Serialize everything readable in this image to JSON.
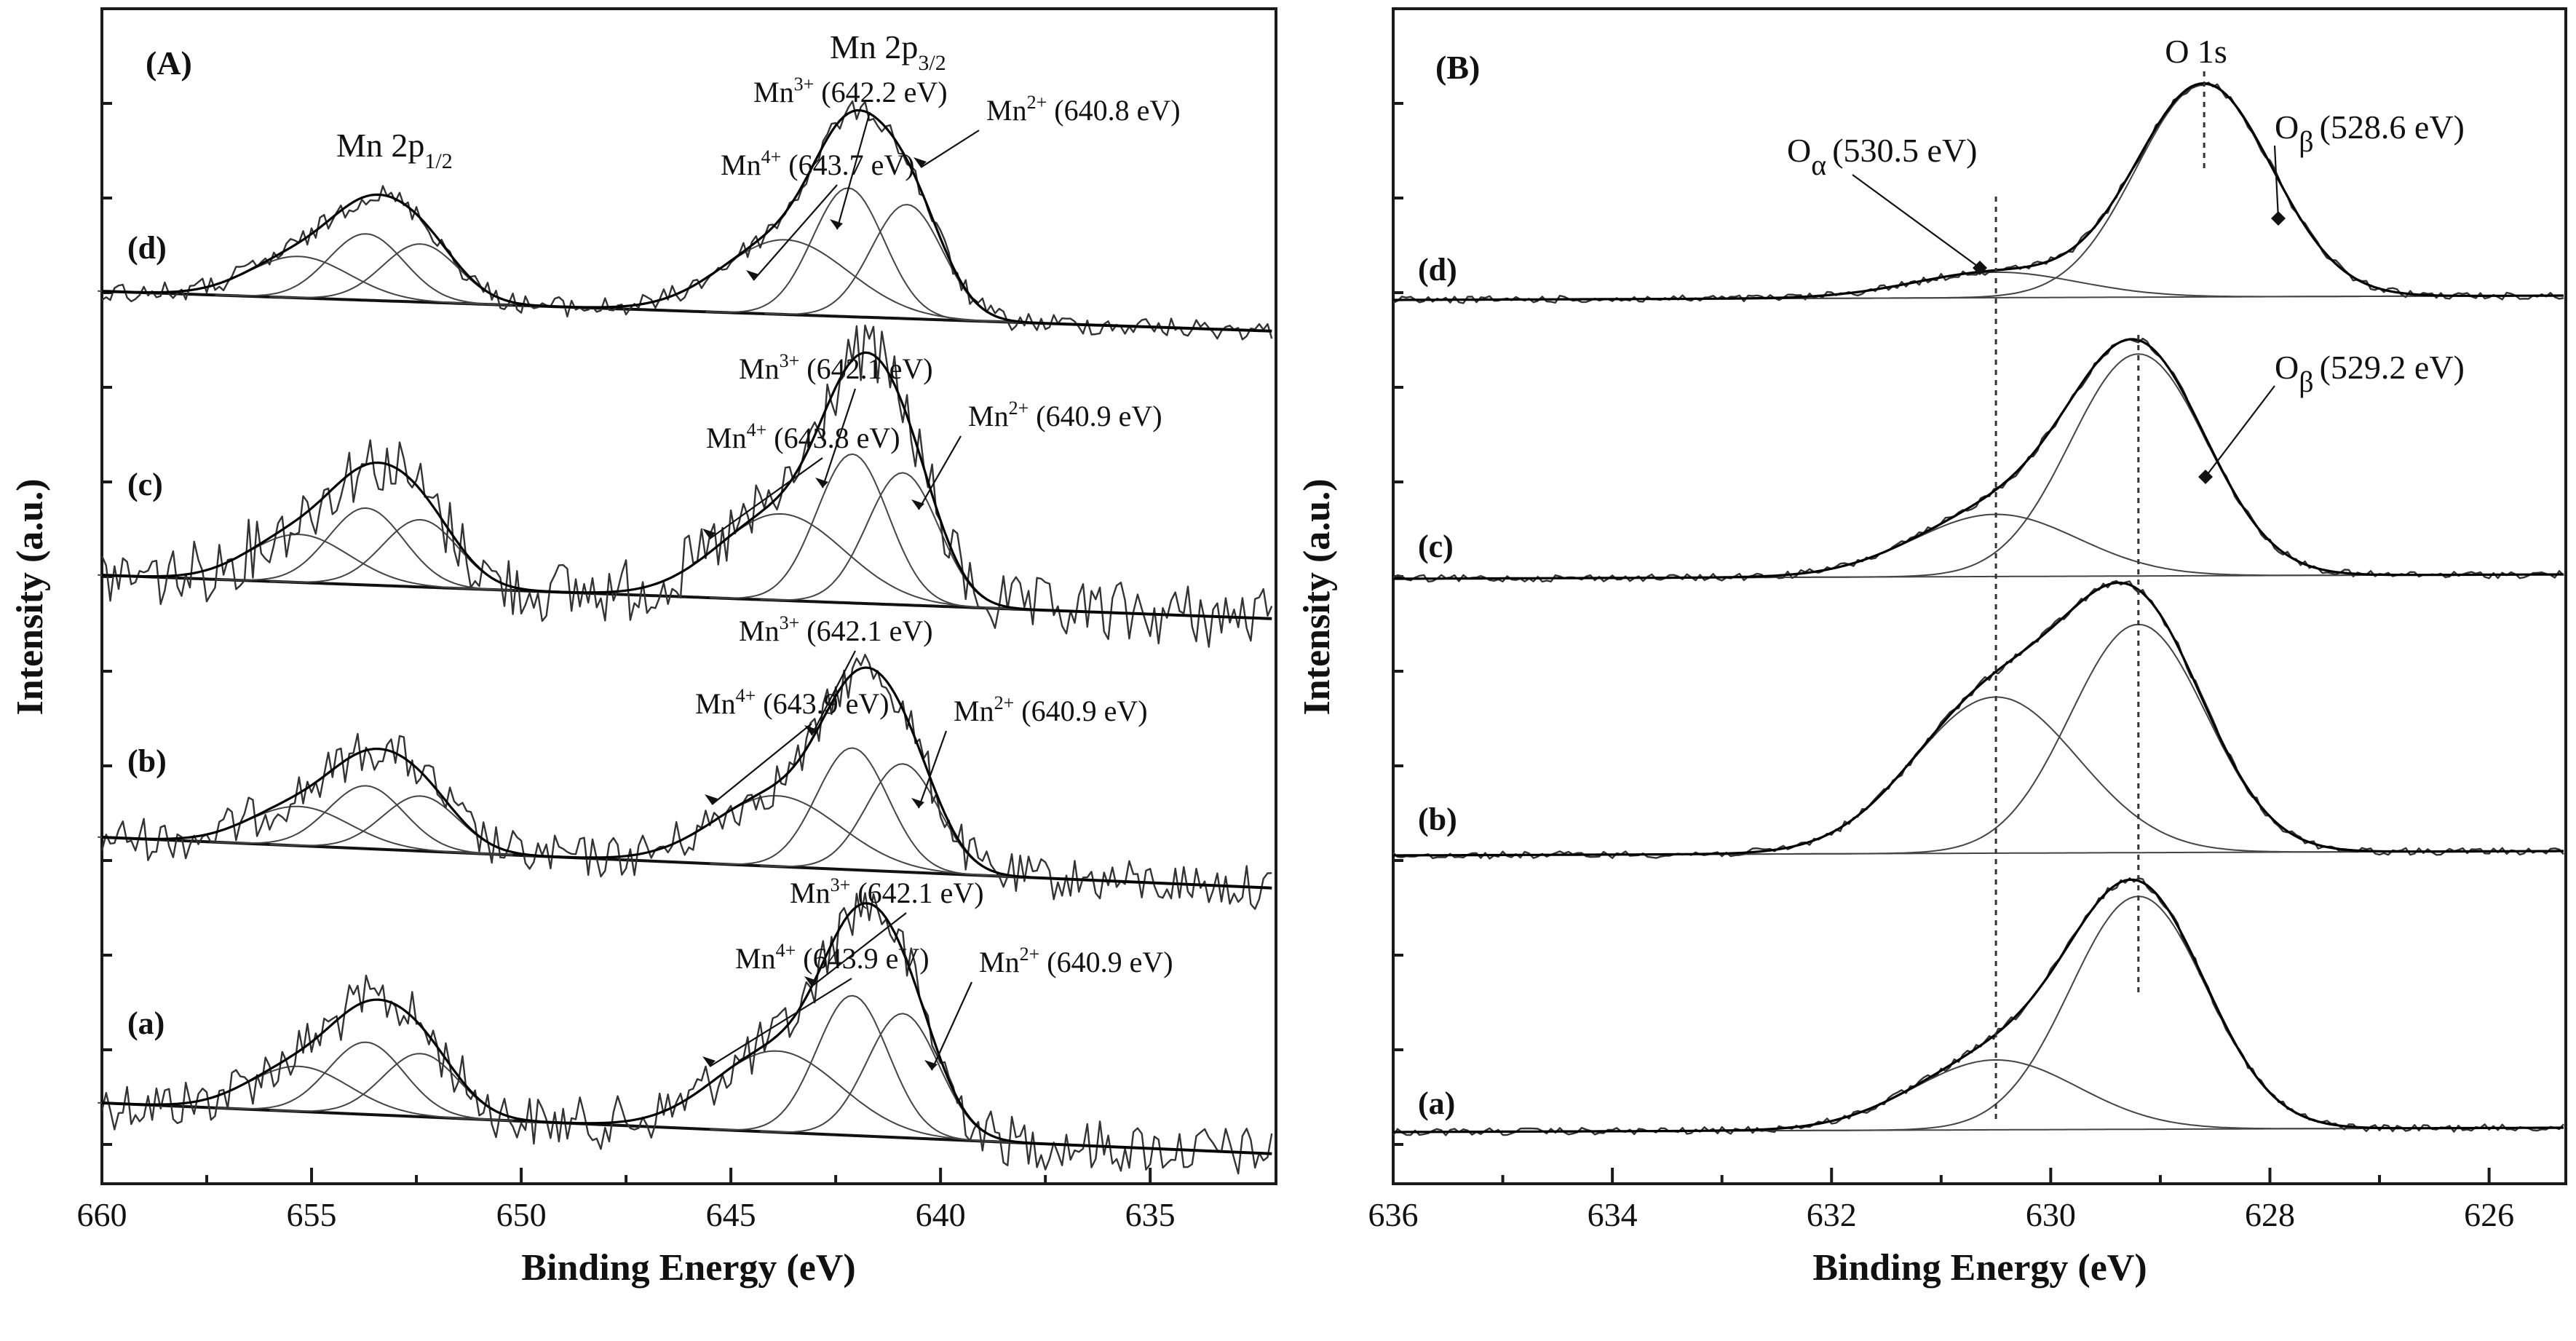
{
  "chart_data": [
    {
      "type": "line",
      "panel": "(A)",
      "title": "",
      "xlabel": "Binding Energy (eV)",
      "ylabel": "Intensity (a.u.)",
      "xlim": [
        660,
        632
      ],
      "xticks": [
        660,
        655,
        650,
        645,
        640,
        635
      ],
      "region_labels": [
        {
          "text": "Mn 2p",
          "sub": "1/2",
          "x": 653.5
        },
        {
          "text": "Mn 2p",
          "sub": "3/2",
          "x": 641.0
        }
      ],
      "series": [
        {
          "name": "(a)",
          "peaks": [
            {
              "species": "Mn",
              "charge": "4+",
              "energy": "643.9",
              "label": "Mn4+ (643.9 eV)"
            },
            {
              "species": "Mn",
              "charge": "3+",
              "energy": "642.1",
              "label": "Mn3+ (642.1 eV)"
            },
            {
              "species": "Mn",
              "charge": "2+",
              "energy": "640.9",
              "label": "Mn2+ (640.9 eV)"
            }
          ]
        },
        {
          "name": "(b)",
          "peaks": [
            {
              "species": "Mn",
              "charge": "4+",
              "energy": "643.9",
              "label": "Mn4+ (643.9 eV)"
            },
            {
              "species": "Mn",
              "charge": "3+",
              "energy": "642.1",
              "label": "Mn3+ (642.1 eV)"
            },
            {
              "species": "Mn",
              "charge": "2+",
              "energy": "640.9",
              "label": "Mn2+ (640.9 eV)"
            }
          ]
        },
        {
          "name": "(c)",
          "peaks": [
            {
              "species": "Mn",
              "charge": "4+",
              "energy": "643.8",
              "label": "Mn4+ (643.8 eV)"
            },
            {
              "species": "Mn",
              "charge": "3+",
              "energy": "642.1",
              "label": "Mn3+ (642.1 eV)"
            },
            {
              "species": "Mn",
              "charge": "2+",
              "energy": "640.9",
              "label": "Mn2+ (640.9 eV)"
            }
          ]
        },
        {
          "name": "(d)",
          "peaks": [
            {
              "species": "Mn",
              "charge": "4+",
              "energy": "643.7",
              "label": "Mn4+ (643.7 eV)"
            },
            {
              "species": "Mn",
              "charge": "3+",
              "energy": "642.2",
              "label": "Mn3+ (642.2 eV)"
            },
            {
              "species": "Mn",
              "charge": "2+",
              "energy": "640.8",
              "label": "Mn2+ (640.8 eV)"
            }
          ]
        }
      ]
    },
    {
      "type": "line",
      "panel": "(B)",
      "title": "O 1s",
      "xlabel": "Binding Energy (eV)",
      "ylabel": "Intensity (a.u.)",
      "xlim": [
        636,
        625.3
      ],
      "xticks": [
        636,
        634,
        632,
        630,
        628,
        626
      ],
      "reference_lines": [
        630.5,
        629.2,
        628.6
      ],
      "series": [
        {
          "name": "(a)",
          "peaks": [
            {
              "energy": 630.5
            },
            {
              "energy": 629.2
            }
          ]
        },
        {
          "name": "(b)",
          "peaks": [
            {
              "energy": 630.5
            },
            {
              "energy": 629.2
            }
          ]
        },
        {
          "name": "(c)",
          "peaks": [
            {
              "energy": 630.5
            },
            {
              "energy": 629.2
            }
          ],
          "annotations": [
            {
              "species": "O",
              "sub": "β",
              "energy": "(529.2 eV)"
            }
          ]
        },
        {
          "name": "(d)",
          "peaks": [
            {
              "energy": 630.5
            },
            {
              "energy": 628.6
            }
          ],
          "annotations": [
            {
              "species": "O",
              "sub": "α",
              "energy": "(530.5 eV)"
            },
            {
              "species": "O",
              "sub": "β",
              "energy": "(528.6 eV)"
            }
          ]
        }
      ]
    }
  ]
}
